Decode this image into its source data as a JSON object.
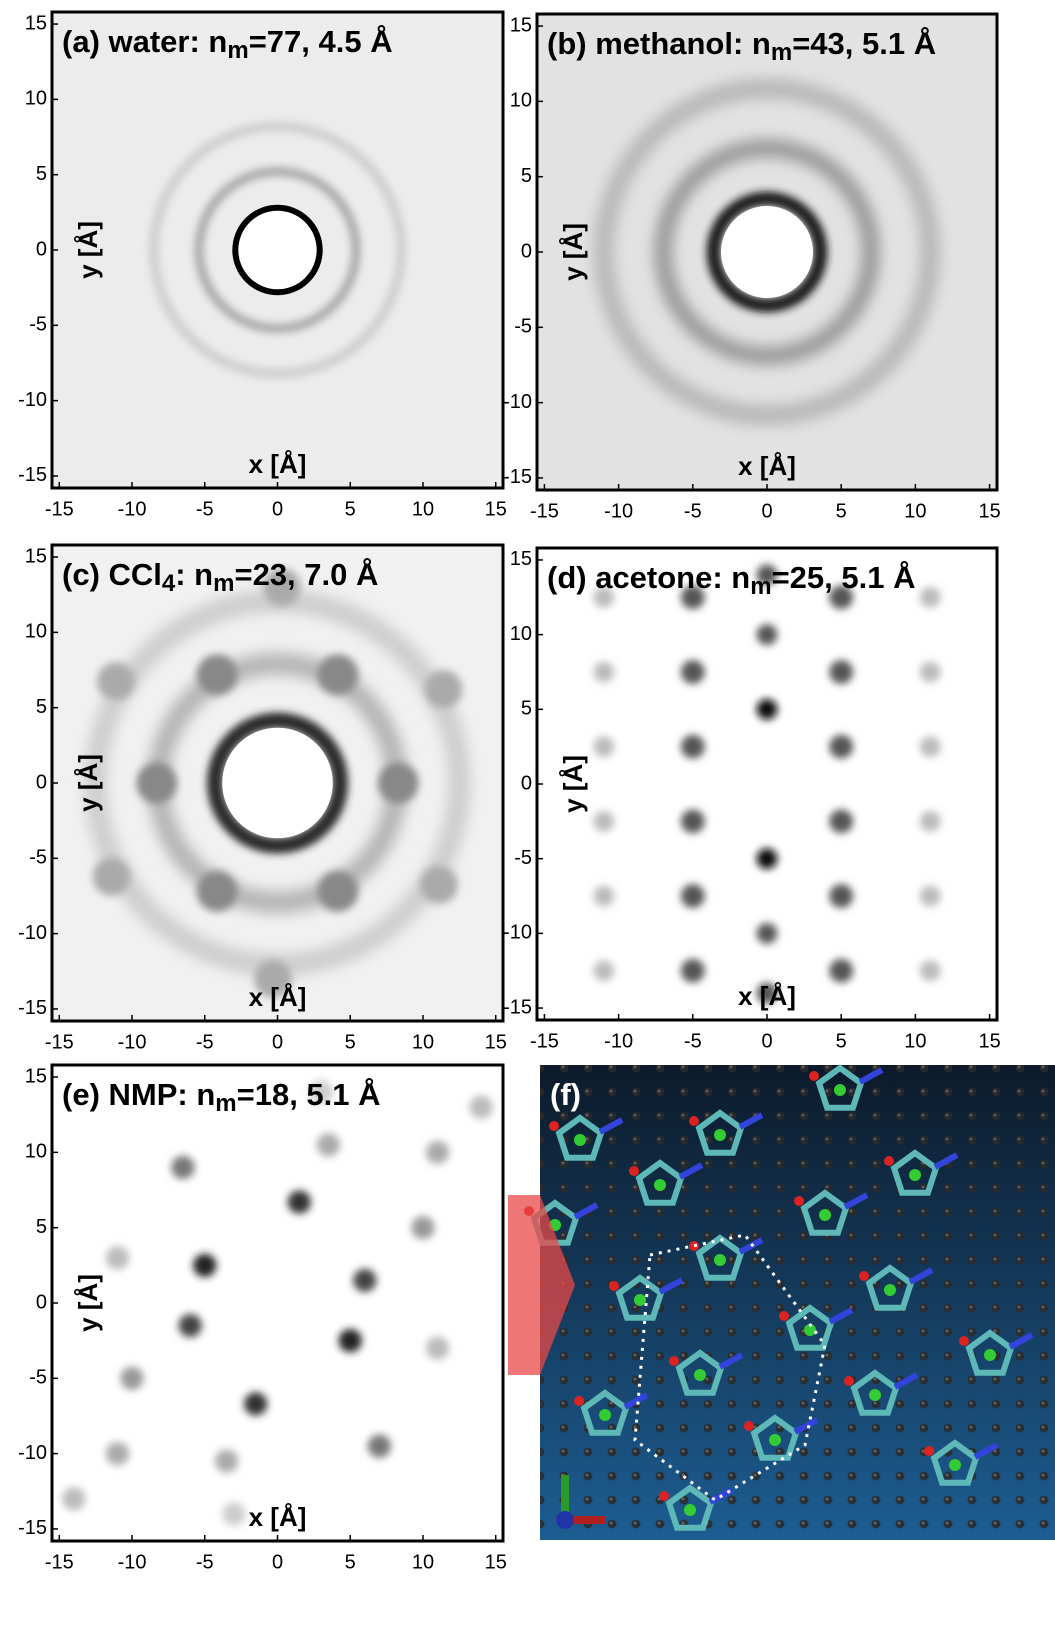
{
  "chart_data": [
    {
      "type": "density",
      "title": [
        "(a) water: n",
        "m",
        "=77, 4.5 Å"
      ],
      "xlabel": "x [Å]",
      "ylabel": "y [Å]",
      "xlim": [
        -15.5,
        15.5
      ],
      "ylim": [
        -15.8,
        15.8
      ],
      "xticks": [
        -15,
        -10,
        -5,
        0,
        5,
        10,
        15
      ],
      "yticks": [
        -15,
        -10,
        -5,
        0,
        5,
        10,
        15
      ]
    },
    {
      "type": "density",
      "title": [
        "(b) methanol: n",
        "m",
        "=43, 5.1 Å"
      ],
      "xlabel": "x [Å]",
      "ylabel": "y [Å]",
      "xlim": [
        -15.5,
        15.5
      ],
      "ylim": [
        -15.8,
        15.8
      ],
      "xticks": [
        -15,
        -10,
        -5,
        0,
        5,
        10,
        15
      ],
      "yticks": [
        -15,
        -10,
        -5,
        0,
        5,
        10,
        15
      ]
    },
    {
      "type": "density",
      "title": [
        "(c) CCl",
        "4",
        ": n",
        "m",
        "=23, 7.0 Å"
      ],
      "xlabel": "x [Å]",
      "ylabel": "y [Å]",
      "xlim": [
        -15.5,
        15.5
      ],
      "ylim": [
        -15.8,
        15.8
      ],
      "xticks": [
        -15,
        -10,
        -5,
        0,
        5,
        10,
        15
      ],
      "yticks": [
        -15,
        -10,
        -5,
        0,
        5,
        10,
        15
      ]
    },
    {
      "type": "density",
      "title": [
        "(d) acetone: n",
        "m",
        "=25, 5.1 Å"
      ],
      "xlabel": "x [Å]",
      "ylabel": "y [Å]",
      "xlim": [
        -15.5,
        15.5
      ],
      "ylim": [
        -15.8,
        15.8
      ],
      "xticks": [
        -15,
        -10,
        -5,
        0,
        5,
        10,
        15
      ],
      "yticks": [
        -15,
        -10,
        -5,
        0,
        5,
        10,
        15
      ]
    },
    {
      "type": "density",
      "title": [
        "(e) NMP: n",
        "m",
        "=18, 5.1 Å"
      ],
      "xlabel": "x [Å]",
      "ylabel": "y [Å]",
      "xlim": [
        -15.5,
        15.5
      ],
      "ylim": [
        -15.8,
        15.8
      ],
      "xticks": [
        -15,
        -10,
        -5,
        0,
        5,
        10,
        15
      ],
      "yticks": [
        -15,
        -10,
        -5,
        0,
        5,
        10,
        15
      ]
    },
    {
      "type": "image",
      "title": [
        "(f)"
      ]
    }
  ]
}
